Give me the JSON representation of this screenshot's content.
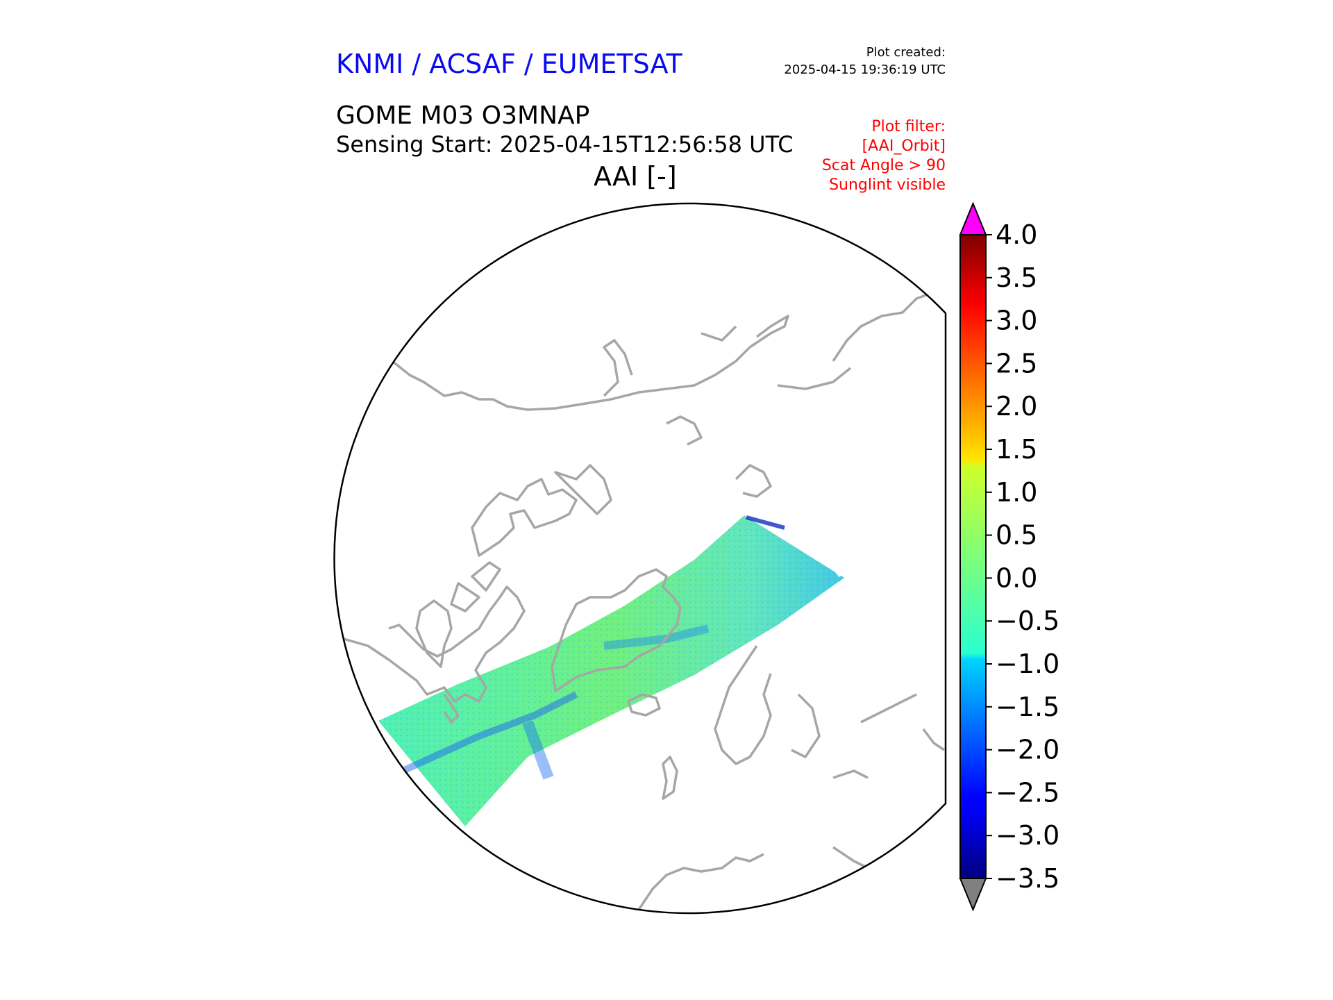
{
  "header": {
    "organisation": "KNMI / ACSAF / EUMETSAT",
    "plot_created_label": "Plot created:",
    "plot_created_value": "2025-04-15 19:36:19 UTC",
    "product": "GOME M03 O3MNAP",
    "sensing_start": "Sensing Start: 2025-04-15T12:56:58 UTC",
    "variable": "AAI [-]",
    "filters": [
      "Plot filter:",
      "[AAI_Orbit]",
      "Scat Angle > 90",
      "Sunglint visible"
    ]
  },
  "colors": {
    "organisation": "#0a0aee",
    "filter": "#ff0000",
    "coastline": "#a6a6a6",
    "over_max": "#ff00ff",
    "under_min": "#808080"
  },
  "colorbar": {
    "min": -3.5,
    "max": 4.0,
    "ticks": [
      "4.0",
      "3.5",
      "3.0",
      "2.5",
      "2.0",
      "1.5",
      "1.0",
      "0.5",
      "0.0",
      "−0.5",
      "−1.0",
      "−1.5",
      "−2.0",
      "−2.5",
      "−3.0",
      "−3.5"
    ],
    "extend": "both",
    "colormap": "jet"
  },
  "map": {
    "projection": "north polar stereographic",
    "swath_typical_value": -0.3
  }
}
